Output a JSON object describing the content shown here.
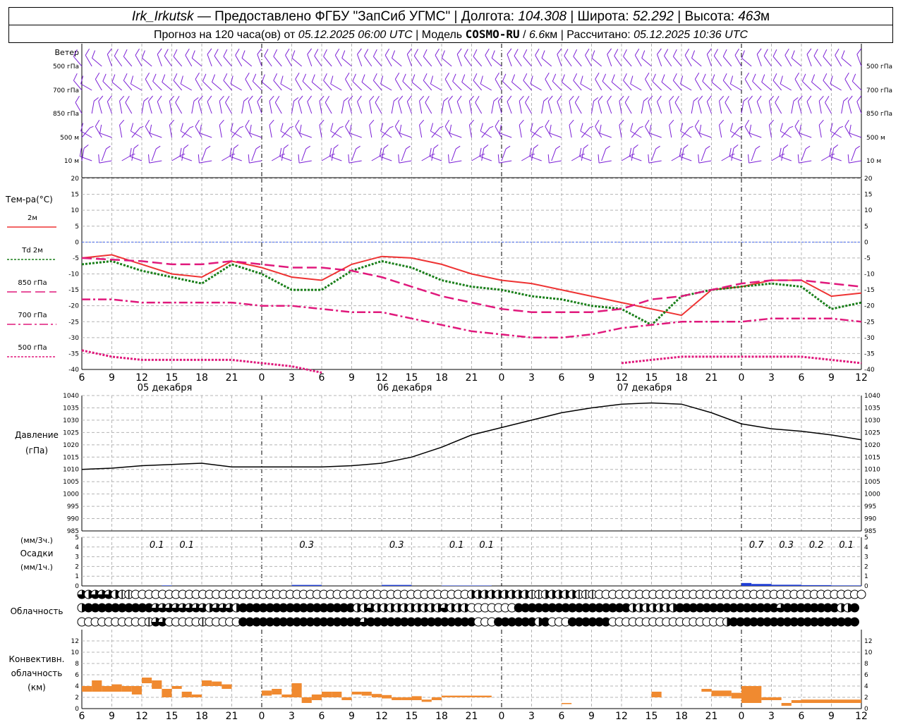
{
  "header": {
    "station": "Irk_Irkutsk",
    "provided_by": "Предоставлено ФГБУ \"ЗапСиб УГМС\"",
    "lon_label": "Долгота:",
    "lon_value": "104.308",
    "lat_label": "Широта:",
    "lat_value": "52.292",
    "alt_label": "Высота:",
    "alt_value": "463",
    "alt_unit": "м",
    "forecast_label": "Прогноз на 120 часа(ов) от",
    "forecast_start": "05.12.2025 06:00 UTC",
    "model_label": "Модель",
    "model_name": "COSMO-RU",
    "model_res": "6.6",
    "model_res_unit": "км",
    "calc_label": "Рассчитано:",
    "calc_time": "05.12.2025 10:36 UTC"
  },
  "time_axis": {
    "hour_labels": [
      "6",
      "9",
      "12",
      "15",
      "18",
      "21",
      "0",
      "3",
      "6",
      "9",
      "12",
      "15",
      "18",
      "21",
      "0",
      "3",
      "6",
      "9",
      "12",
      "15",
      "18",
      "21",
      "0",
      "3",
      "6",
      "9",
      "12"
    ],
    "day_labels": [
      "05 декабря",
      "06 декабря",
      "07 декабря"
    ]
  },
  "wind_panel": {
    "title": "Ветер",
    "levels": [
      "500 гПа",
      "700 гПа",
      "850 гПа",
      "500 м",
      "10 м"
    ],
    "barb_color": "#7b1fd6"
  },
  "chart_data": [
    {
      "type": "line",
      "name": "temperature",
      "title": "Тем-ра(°C)",
      "yticks": [
        "20",
        "15",
        "10",
        "5",
        "0",
        "-5",
        "-10",
        "-15",
        "-20",
        "-25",
        "-30",
        "-35",
        "-40"
      ],
      "ylim": [
        -40,
        20
      ],
      "x_hours": [
        0,
        3,
        6,
        9,
        12,
        15,
        18,
        21,
        24,
        27,
        30,
        33,
        36,
        39,
        42,
        45,
        48,
        51,
        54,
        57,
        60,
        63,
        66,
        69,
        72,
        75,
        78
      ],
      "series": [
        {
          "name": "2м",
          "color": "#ee3333",
          "values": [
            -5,
            -4,
            -7,
            -10,
            -11,
            -6,
            -8,
            -11,
            -12,
            -7,
            -4.5,
            -5,
            -7,
            -10,
            -12,
            -13,
            -15,
            -17,
            -19,
            -21,
            -23,
            -15,
            -14,
            -12,
            -12,
            -17,
            -16
          ]
        },
        {
          "name": "Td 2м",
          "color": "#1a7f1a",
          "values": [
            -7,
            -6,
            -9,
            -11,
            -13,
            -7,
            -10,
            -15,
            -15,
            -9,
            -6,
            -8,
            -12,
            -14,
            -15,
            -17,
            -18,
            -20,
            -21,
            -26,
            -17,
            -15,
            -14,
            -13,
            -14,
            -21,
            -19
          ]
        },
        {
          "name": "850 гПа",
          "color": "#e0197c",
          "values": [
            -5,
            -5.5,
            -6,
            -7,
            -7,
            -6,
            -7,
            -8,
            -8,
            -9,
            -11,
            -14,
            -17,
            -19,
            -21,
            -22,
            -22,
            -22,
            -21,
            -18,
            -17,
            -15,
            -13,
            -12,
            -12,
            -13,
            -14
          ]
        },
        {
          "name": "700 гПа",
          "color": "#e0197c",
          "values": [
            -18,
            -18,
            -19,
            -19,
            -19,
            -19,
            -20,
            -20,
            -21,
            -22,
            -22,
            -24,
            -26,
            -28,
            -29,
            -30,
            -30,
            -29,
            -27,
            -26,
            -25,
            -25,
            -25,
            -24,
            -24,
            -24,
            -25
          ]
        },
        {
          "name": "500 гПа",
          "color": "#e0197c",
          "values": [
            -34,
            -36,
            -37,
            -37,
            -37,
            -37,
            -38,
            -39,
            -41,
            null,
            null,
            null,
            null,
            null,
            null,
            null,
            null,
            null,
            -38,
            -37,
            -36,
            -36,
            -36,
            -36,
            -36,
            -37,
            -38
          ]
        }
      ]
    },
    {
      "type": "line",
      "name": "pressure",
      "title": "Давление",
      "unit": "(гПа)",
      "yticks": [
        "1040",
        "1035",
        "1030",
        "1025",
        "1020",
        "1015",
        "1010",
        "1005",
        "1000",
        "995",
        "990",
        "985"
      ],
      "ylim": [
        985,
        1040
      ],
      "x_hours": [
        0,
        3,
        6,
        9,
        12,
        15,
        18,
        21,
        24,
        27,
        30,
        33,
        36,
        39,
        42,
        45,
        48,
        51,
        54,
        57,
        60,
        63,
        66,
        69,
        72,
        75,
        78
      ],
      "series": [
        {
          "name": "Давление",
          "color": "#000000",
          "values": [
            1010,
            1010.5,
            1011.5,
            1012,
            1012.5,
            1011,
            1011,
            1011,
            1011,
            1011.5,
            1012.5,
            1015,
            1019,
            1024,
            1027,
            1030,
            1033,
            1035,
            1036.5,
            1037,
            1036.5,
            1033,
            1028.5,
            1026.5,
            1025.5,
            1024,
            1022
          ]
        }
      ]
    },
    {
      "type": "bar",
      "name": "precipitation",
      "title": "Осадки",
      "unit_3h": "(мм/3ч.)",
      "unit_1h": "(мм/1ч.)",
      "yticks": [
        "5",
        "4",
        "3",
        "2",
        "1",
        "0"
      ],
      "ylim": [
        0,
        5
      ],
      "color": "#1f3fd6",
      "labels": [
        {
          "hour": 7.5,
          "text": "0.1"
        },
        {
          "hour": 10.5,
          "text": "0.1"
        },
        {
          "hour": 22.5,
          "text": "0.3"
        },
        {
          "hour": 31.5,
          "text": "0.3"
        },
        {
          "hour": 37.5,
          "text": "0.1"
        },
        {
          "hour": 40.5,
          "text": "0.1"
        },
        {
          "hour": 67.5,
          "text": "0.7"
        },
        {
          "hour": 70.5,
          "text": "0.3"
        },
        {
          "hour": 73.5,
          "text": "0.2"
        },
        {
          "hour": 76.5,
          "text": "0.1"
        }
      ],
      "bars_hourly": [
        {
          "from": 8,
          "to": 9,
          "value": 0.05
        },
        {
          "from": 21,
          "to": 24,
          "value": 0.1
        },
        {
          "from": 30,
          "to": 33,
          "value": 0.1
        },
        {
          "from": 36,
          "to": 41,
          "value": 0.04
        },
        {
          "from": 66,
          "to": 67,
          "value": 0.3
        },
        {
          "from": 67,
          "to": 69,
          "value": 0.2
        },
        {
          "from": 69,
          "to": 72,
          "value": 0.12
        },
        {
          "from": 72,
          "to": 75,
          "value": 0.08
        },
        {
          "from": 75,
          "to": 78,
          "value": 0.05
        }
      ]
    },
    {
      "type": "bar",
      "name": "convective_cloud",
      "title": "Конвективн. облачность",
      "unit": "(км)",
      "yticks": [
        "12",
        "10",
        "8",
        "6",
        "4",
        "2",
        "0"
      ],
      "ylim": [
        0,
        14
      ],
      "color": "#f08a30",
      "bars": [
        {
          "from": 0,
          "to": 1,
          "bottom": 3,
          "top": 4
        },
        {
          "from": 1,
          "to": 2,
          "bottom": 3,
          "top": 5
        },
        {
          "from": 2,
          "to": 3,
          "bottom": 3,
          "top": 4
        },
        {
          "from": 3,
          "to": 4,
          "bottom": 3,
          "top": 4.3
        },
        {
          "from": 4,
          "to": 5,
          "bottom": 3,
          "top": 4
        },
        {
          "from": 5,
          "to": 6,
          "bottom": 2.5,
          "top": 4
        },
        {
          "from": 6,
          "to": 7,
          "bottom": 4.5,
          "top": 5.5
        },
        {
          "from": 7,
          "to": 8,
          "bottom": 3.5,
          "top": 5
        },
        {
          "from": 8,
          "to": 9,
          "bottom": 2,
          "top": 3.5
        },
        {
          "from": 9,
          "to": 10,
          "bottom": 3.5,
          "top": 4
        },
        {
          "from": 10,
          "to": 11,
          "bottom": 2,
          "top": 3
        },
        {
          "from": 11,
          "to": 12,
          "bottom": 2,
          "top": 2.5
        },
        {
          "from": 12,
          "to": 13,
          "bottom": 4,
          "top": 5
        },
        {
          "from": 13,
          "to": 14,
          "bottom": 4,
          "top": 4.8
        },
        {
          "from": 14,
          "to": 15,
          "bottom": 3.5,
          "top": 4.3
        },
        {
          "from": 18,
          "to": 19,
          "bottom": 2.3,
          "top": 3.2
        },
        {
          "from": 19,
          "to": 20,
          "bottom": 2.5,
          "top": 3.5
        },
        {
          "from": 20,
          "to": 21,
          "bottom": 2,
          "top": 2.5
        },
        {
          "from": 21,
          "to": 22,
          "bottom": 2,
          "top": 4.5
        },
        {
          "from": 22,
          "to": 23,
          "bottom": 1,
          "top": 2
        },
        {
          "from": 23,
          "to": 24,
          "bottom": 1.5,
          "top": 2.5
        },
        {
          "from": 24,
          "to": 25,
          "bottom": 2,
          "top": 3
        },
        {
          "from": 25,
          "to": 26,
          "bottom": 2,
          "top": 3
        },
        {
          "from": 26,
          "to": 27,
          "bottom": 1.5,
          "top": 2
        },
        {
          "from": 27,
          "to": 28,
          "bottom": 2.5,
          "top": 3
        },
        {
          "from": 28,
          "to": 29,
          "bottom": 2.3,
          "top": 3
        },
        {
          "from": 29,
          "to": 30,
          "bottom": 2,
          "top": 2.6
        },
        {
          "from": 30,
          "to": 31,
          "bottom": 1.8,
          "top": 2.4
        },
        {
          "from": 31,
          "to": 32,
          "bottom": 1.5,
          "top": 2
        },
        {
          "from": 32,
          "to": 33,
          "bottom": 1.5,
          "top": 2
        },
        {
          "from": 33,
          "to": 34,
          "bottom": 1.5,
          "top": 2.2
        },
        {
          "from": 34,
          "to": 35,
          "bottom": 1.2,
          "top": 1.6
        },
        {
          "from": 35,
          "to": 36,
          "bottom": 1.5,
          "top": 2
        },
        {
          "from": 36,
          "to": 41,
          "bottom": 2,
          "top": 2.3
        },
        {
          "from": 48,
          "to": 49,
          "bottom": 0.8,
          "top": 1
        },
        {
          "from": 57,
          "to": 58,
          "bottom": 2,
          "top": 3
        },
        {
          "from": 62,
          "to": 63,
          "bottom": 3,
          "top": 3.5
        },
        {
          "from": 63,
          "to": 65,
          "bottom": 2.2,
          "top": 3.2
        },
        {
          "from": 65,
          "to": 66,
          "bottom": 1.8,
          "top": 2.8
        },
        {
          "from": 66,
          "to": 68,
          "bottom": 1,
          "top": 4
        },
        {
          "from": 68,
          "to": 70,
          "bottom": 1.5,
          "top": 2
        },
        {
          "from": 70,
          "to": 71,
          "bottom": 0.5,
          "top": 1
        },
        {
          "from": 71,
          "to": 72,
          "bottom": 1,
          "top": 1.5
        },
        {
          "from": 72,
          "to": 78,
          "bottom": 1,
          "top": 1.6
        }
      ]
    }
  ],
  "cloud_panel": {
    "title": "Облачность",
    "rows": [
      [
        3,
        2,
        3,
        3,
        3,
        2,
        1,
        1,
        0,
        0,
        0,
        0,
        0,
        0,
        0,
        0,
        0,
        0,
        0,
        0,
        0,
        0,
        0,
        0,
        0,
        0,
        0,
        0,
        0,
        0,
        0,
        0,
        0,
        0,
        0,
        0,
        0,
        0,
        0,
        0,
        0,
        0,
        0,
        0,
        0,
        0,
        0,
        0,
        0,
        0,
        0,
        0,
        0,
        0,
        0,
        0,
        0,
        0,
        2,
        2,
        2,
        2,
        2,
        2,
        2,
        2,
        2,
        1,
        1,
        2,
        2,
        2,
        2,
        2,
        1,
        1,
        1,
        0,
        0,
        0,
        0,
        0,
        0,
        0,
        0,
        0,
        0,
        0,
        0,
        0,
        0,
        0,
        0,
        0,
        0,
        0,
        0,
        0,
        0,
        0,
        0,
        0,
        0,
        0,
        0,
        0,
        0,
        0,
        0,
        0,
        0,
        0,
        0,
        0,
        0,
        0,
        0
      ],
      [
        2,
        4,
        4,
        4,
        4,
        4,
        4,
        4,
        4,
        4,
        4,
        3,
        3,
        3,
        3,
        3,
        3,
        3,
        3,
        2,
        3,
        3,
        3,
        2,
        4,
        4,
        4,
        4,
        4,
        4,
        4,
        4,
        4,
        4,
        4,
        4,
        4,
        4,
        4,
        4,
        4,
        2,
        2,
        3,
        2,
        2,
        2,
        2,
        2,
        2,
        2,
        2,
        2,
        2,
        3,
        2,
        2,
        2,
        0,
        0,
        0,
        0,
        0,
        0,
        0,
        4,
        4,
        4,
        4,
        4,
        4,
        4,
        4,
        4,
        4,
        4,
        4,
        4,
        4,
        4,
        4,
        4,
        2,
        2,
        2,
        2,
        2,
        2,
        2,
        4,
        4,
        4,
        4,
        4,
        4,
        4,
        4,
        4,
        4,
        4,
        4,
        4,
        4,
        4,
        3,
        4,
        4,
        4,
        4,
        4,
        4,
        4,
        4,
        2,
        2,
        4
      ],
      [
        0,
        0,
        0,
        0,
        0,
        0,
        0,
        0,
        0,
        0,
        1,
        3,
        3,
        0,
        0,
        0,
        0,
        0,
        1,
        0,
        0,
        0,
        0,
        0,
        4,
        4,
        4,
        4,
        4,
        4,
        4,
        4,
        4,
        4,
        4,
        4,
        4,
        4,
        4,
        4,
        4,
        4,
        3,
        4,
        4,
        4,
        4,
        4,
        4,
        4,
        4,
        4,
        4,
        4,
        4,
        4,
        4,
        4,
        4,
        0,
        0,
        0,
        4,
        4,
        4,
        4,
        4,
        4,
        2,
        4,
        0,
        0,
        0,
        4,
        4,
        4,
        4,
        4,
        4,
        0,
        0,
        0,
        0,
        0,
        0,
        0,
        0,
        0,
        0,
        0,
        0,
        0,
        0,
        0,
        0,
        0,
        2,
        4,
        4,
        4,
        4,
        4,
        4,
        4,
        4,
        4,
        4,
        4,
        4,
        4,
        4,
        4,
        4,
        4,
        4,
        4
      ]
    ]
  }
}
